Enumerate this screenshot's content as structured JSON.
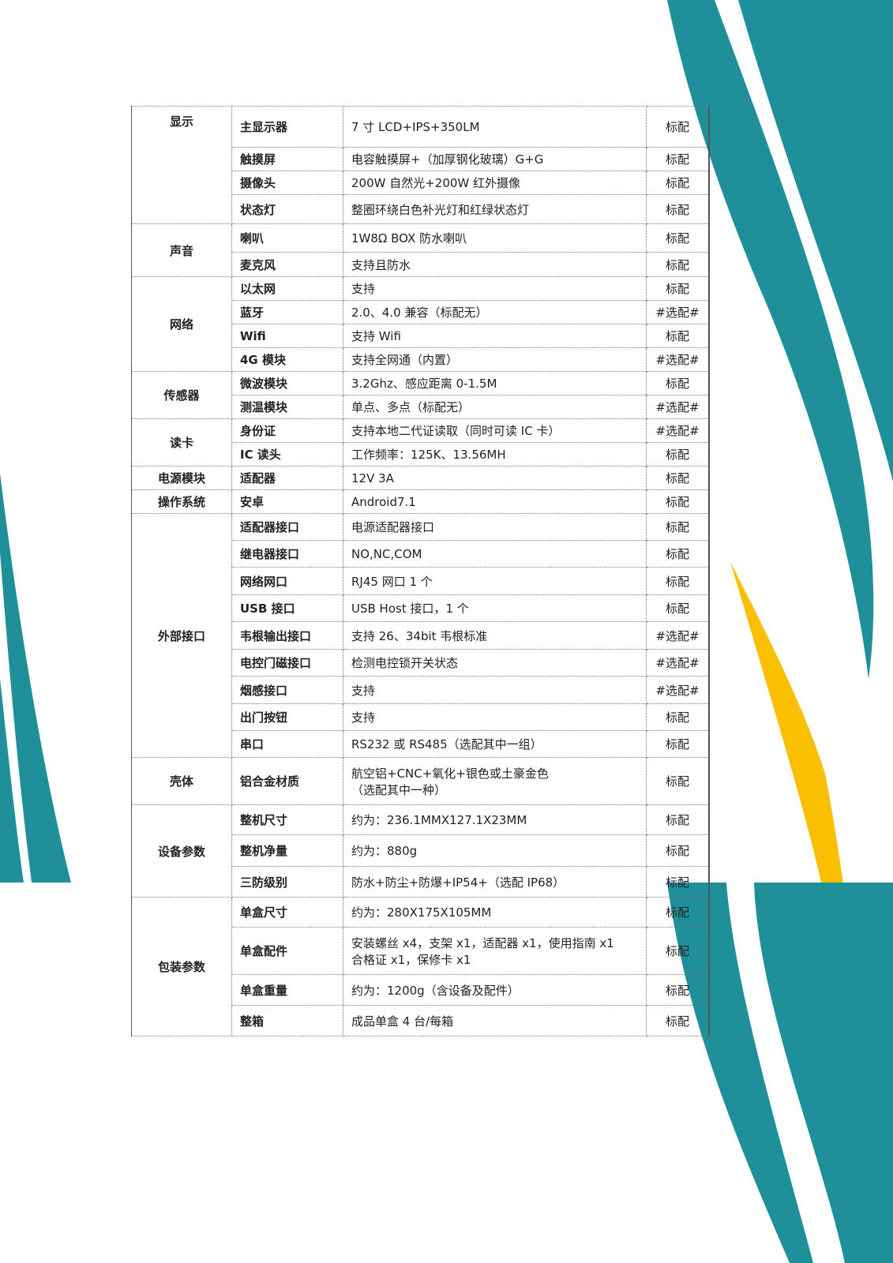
{
  "colors": {
    "teal": "#1f9099",
    "yellow": "#f9bf00"
  },
  "spec_table": {
    "groups": [
      {
        "category": "显示",
        "rows": [
          {
            "item": "主显示器",
            "desc": "7 寸 LCD+IPS+350LM",
            "config": "标配"
          },
          {
            "item": "触摸屏",
            "desc": "电容触摸屏+（加厚钢化玻璃）G+G",
            "config": "标配"
          },
          {
            "item": "摄像头",
            "desc": "200W 自然光+200W 红外摄像",
            "config": "标配"
          },
          {
            "item": "状态灯",
            "desc": "整圈环绕白色补光灯和红绿状态灯",
            "config": "标配"
          }
        ]
      },
      {
        "category": "声音",
        "rows": [
          {
            "item": "喇叭",
            "desc": "1W8Ω BOX 防水喇叭",
            "config": "标配"
          },
          {
            "item": "麦克风",
            "desc": "支持且防水",
            "config": "标配"
          }
        ]
      },
      {
        "category": "网络",
        "rows": [
          {
            "item": "以太网",
            "desc": "支持",
            "config": "标配"
          },
          {
            "item": "蓝牙",
            "desc": "2.0、4.0 兼容（标配无）",
            "config": "#选配#"
          },
          {
            "item": "Wifi",
            "desc": "支持 Wifi",
            "config": "标配"
          },
          {
            "item": "4G 模块",
            "desc": "支持全网通（内置）",
            "config": "#选配#"
          }
        ]
      },
      {
        "category": "传感器",
        "rows": [
          {
            "item": "微波模块",
            "desc": "3.2Ghz、感应距离 0-1.5M",
            "config": "标配"
          },
          {
            "item": "测温模块",
            "desc": "单点、多点（标配无）",
            "config": "#选配#"
          }
        ]
      },
      {
        "category": "读卡",
        "rows": [
          {
            "item": "身份证",
            "desc": "支持本地二代证读取（同时可读 IC 卡）",
            "config": "#选配#"
          },
          {
            "item": "IC 读头",
            "desc": "工作频率：125K、13.56MH",
            "config": "标配"
          }
        ]
      },
      {
        "category": "电源模块",
        "rows": [
          {
            "item": "适配器",
            "desc": "12V 3A",
            "config": "标配"
          }
        ]
      },
      {
        "category": "操作系统",
        "rows": [
          {
            "item": "安卓",
            "desc": "Android7.1",
            "config": "标配"
          }
        ]
      },
      {
        "category": "外部接口",
        "rows": [
          {
            "item": "适配器接口",
            "desc": "电源适配器接口",
            "config": "标配"
          },
          {
            "item": "继电器接口",
            "desc": "NO,NC,COM",
            "config": "标配"
          },
          {
            "item": "网络网口",
            "desc": "RJ45 网口 1 个",
            "config": "标配"
          },
          {
            "item": "USB  接口",
            "desc": "USB Host 接口，1 个",
            "config": "标配"
          },
          {
            "item": "韦根输出接口",
            "desc": "支持 26、34bit 韦根标准",
            "config": "#选配#"
          },
          {
            "item": "电控门磁接口",
            "desc": "检测电控锁开关状态",
            "config": "#选配#"
          },
          {
            "item": "烟感接口",
            "desc": "支持",
            "config": "#选配#"
          },
          {
            "item": "出门按钮",
            "desc": "支持",
            "config": "标配"
          },
          {
            "item": "串口",
            "desc": "RS232 或 RS485（选配其中一组）",
            "config": "标配"
          }
        ]
      },
      {
        "category": "壳体",
        "rows": [
          {
            "item": "铝合金材质",
            "desc": "航空铝+CNC+氧化+银色或土豪金色\n（选配其中一种）",
            "config": "标配"
          }
        ]
      },
      {
        "category": "设备参数",
        "rows": [
          {
            "item": "整机尺寸",
            "desc": "约为：236.1MMX127.1X23MM",
            "config": "标配"
          },
          {
            "item": "整机净量",
            "desc": "约为：880g",
            "config": "标配"
          },
          {
            "item": "三防级别",
            "desc": "防水+防尘+防爆+IP54+（选配 IP68）",
            "config": "标配"
          }
        ]
      },
      {
        "category": "包装参数",
        "rows": [
          {
            "item": "单盒尺寸",
            "desc": "约为：280X175X105MM",
            "config": "标配"
          },
          {
            "item": "单盒配件",
            "desc": "安装螺丝 x4，支架 x1，适配器 x1，使用指南 x1\n合格证 x1，保修卡 x1",
            "config": "标配"
          },
          {
            "item": "单盒重量",
            "desc": "约为：1200g（含设备及配件）",
            "config": "标配"
          },
          {
            "item": "整箱",
            "desc": "成品单盒 4 台/每箱",
            "config": "标配"
          }
        ]
      }
    ]
  }
}
